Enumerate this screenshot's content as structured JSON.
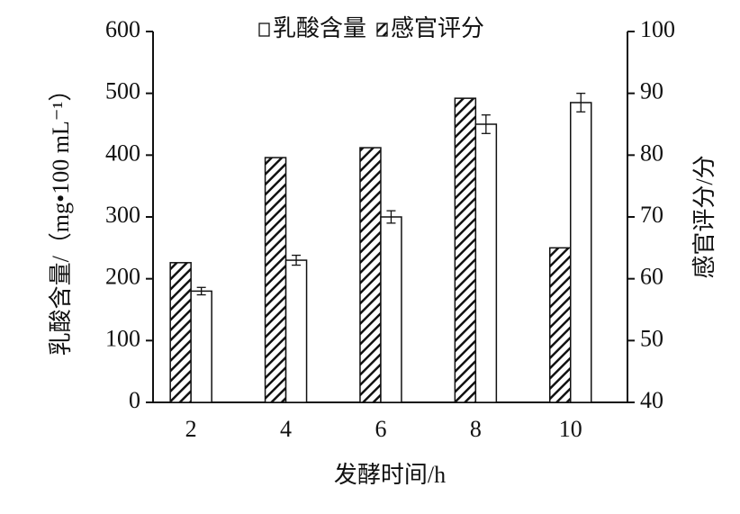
{
  "chart_data": {
    "type": "bar",
    "x_label": "发酵时间/h",
    "y_label": "乳酸含量/（mg•100 mL⁻¹）",
    "y2_label": "感官评分/分",
    "categories": [
      "2",
      "4",
      "6",
      "8",
      "10"
    ],
    "series": [
      {
        "name": "感官评分",
        "color": "#ffffff",
        "hatch": true,
        "axis": "y2",
        "values": [
          62.6,
          79.6,
          81.2,
          89.2,
          65.0
        ]
      },
      {
        "name": "乳酸含量",
        "color": "#ffffff",
        "hatch": false,
        "values": [
          180,
          230,
          300,
          450,
          485
        ],
        "errors": [
          6,
          8,
          10,
          15,
          15
        ]
      }
    ],
    "legend_order": [
      1,
      0
    ],
    "ylim": [
      0,
      600
    ],
    "yticks": [
      0,
      100,
      200,
      300,
      400,
      500,
      600
    ],
    "y2lim": [
      40,
      100
    ],
    "y2ticks": [
      40,
      50,
      60,
      70,
      80,
      90,
      100
    ]
  }
}
